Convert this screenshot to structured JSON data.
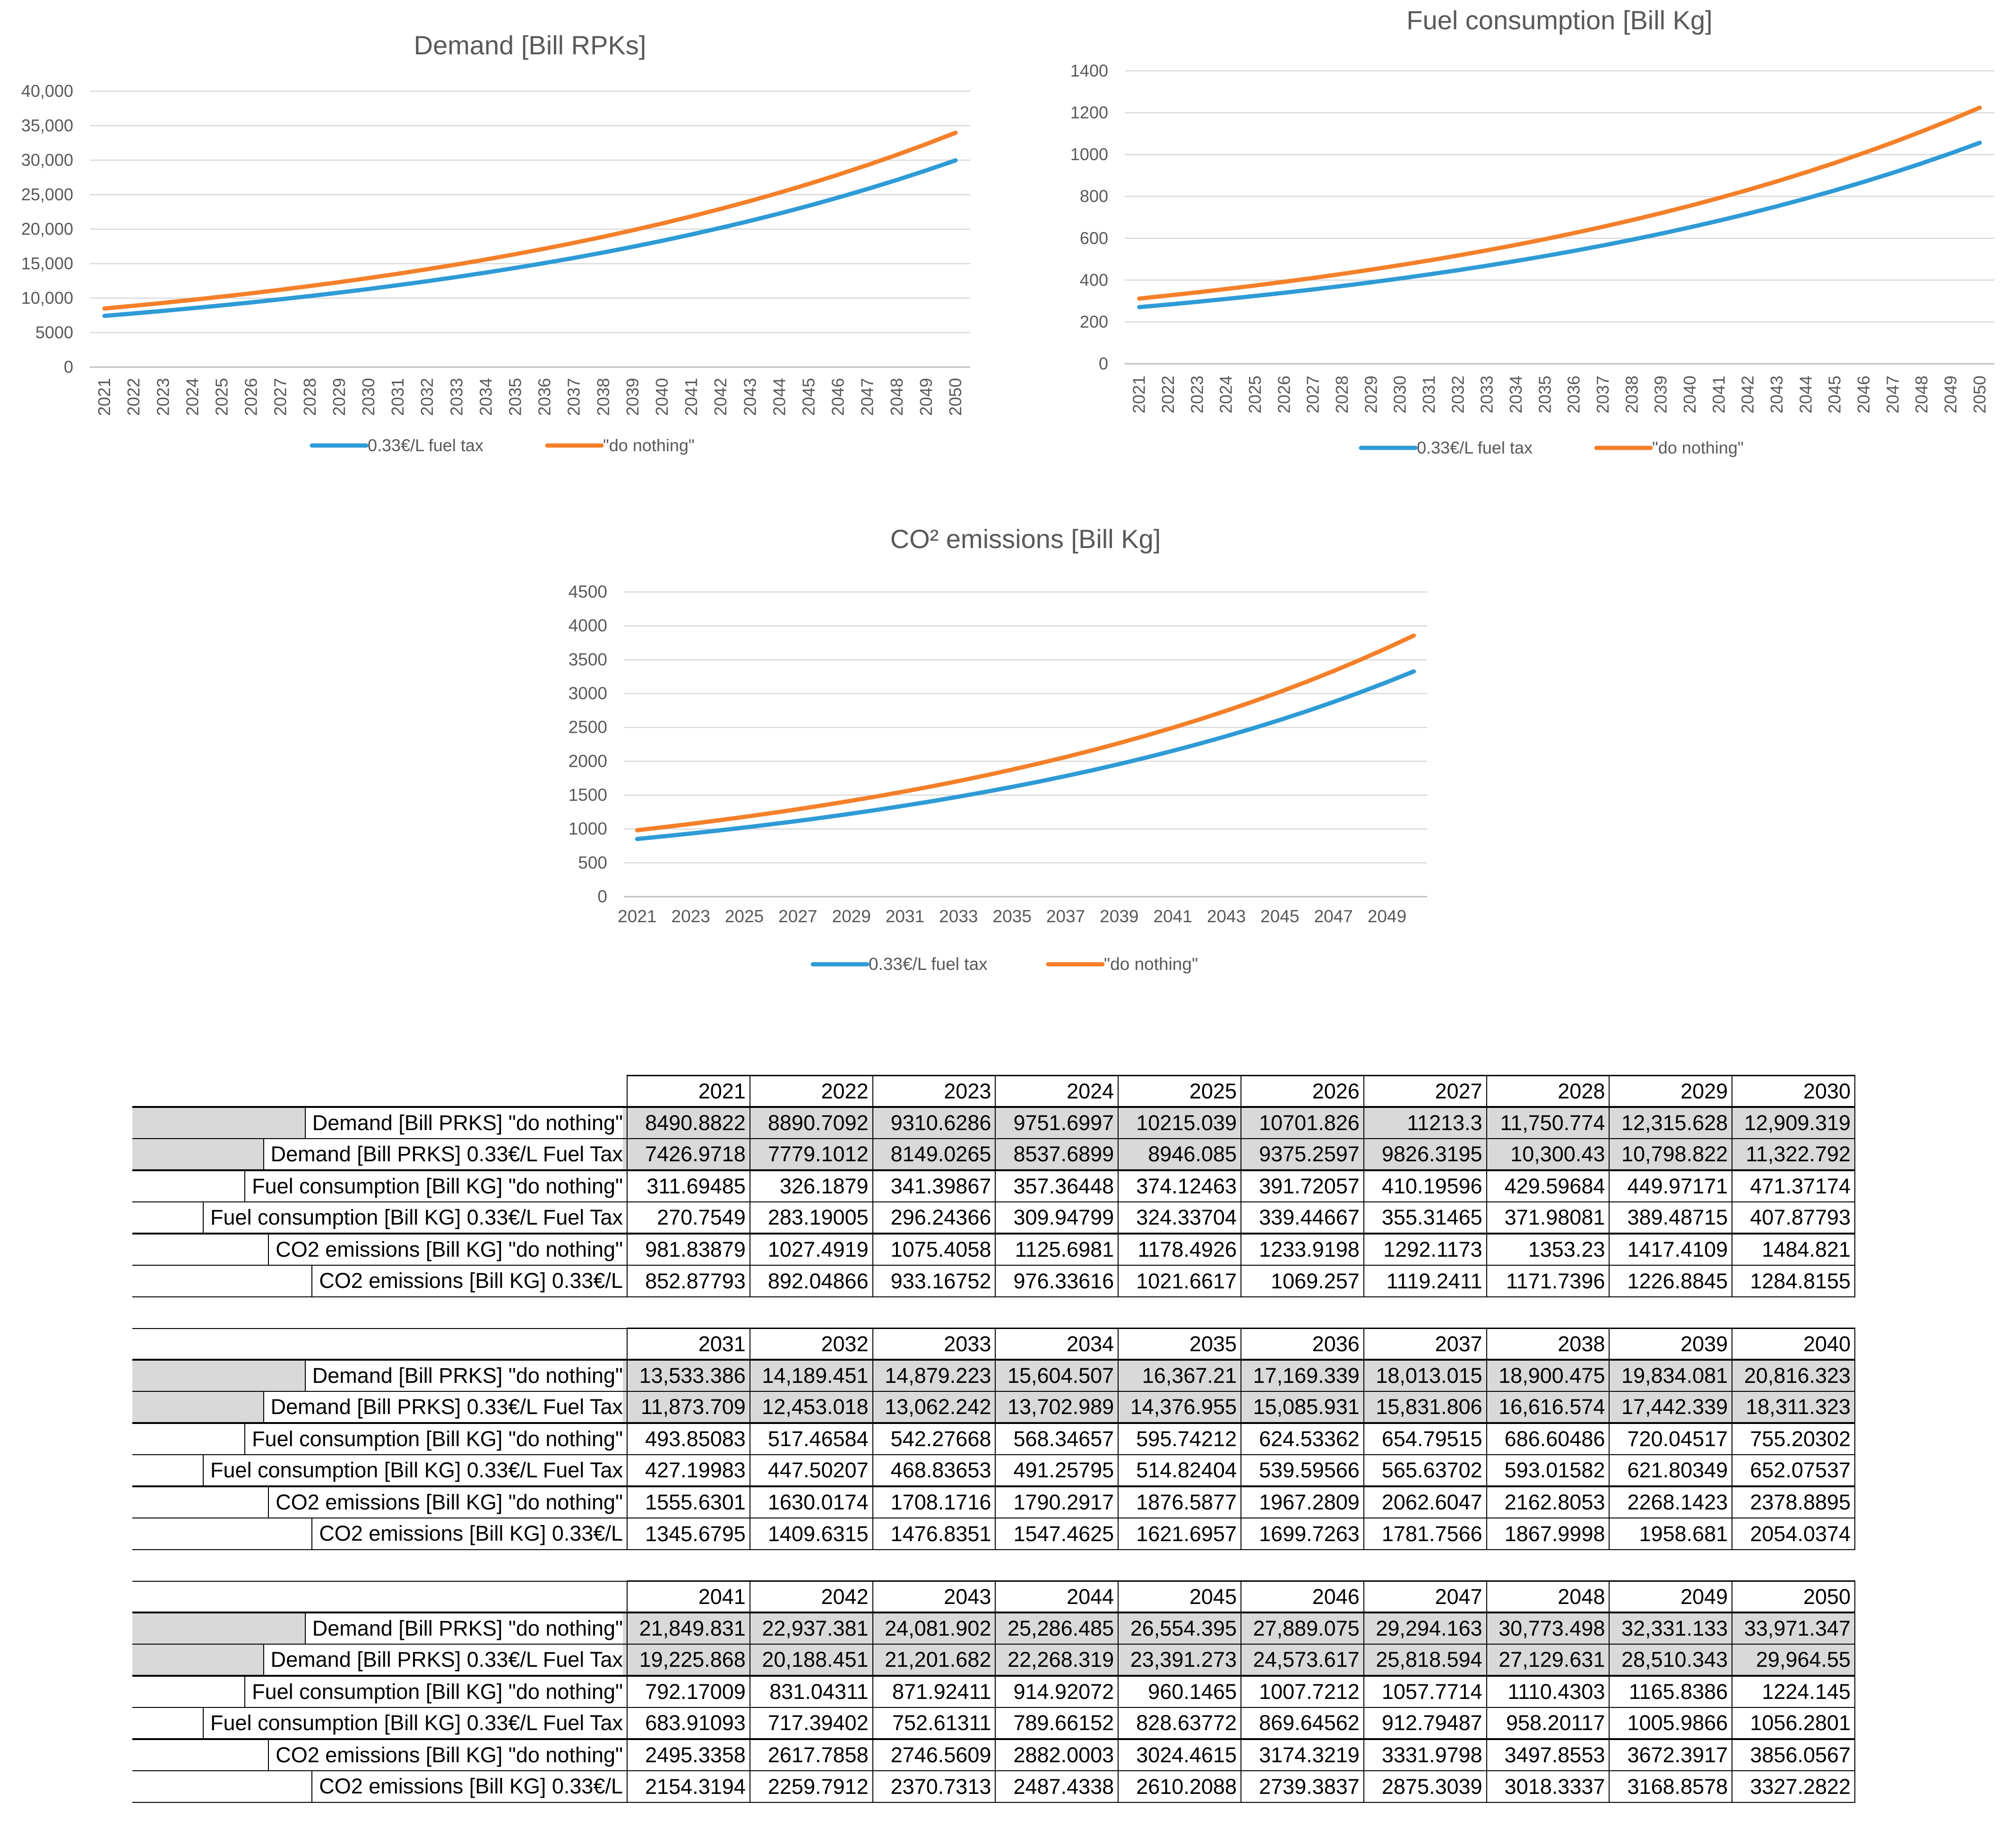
{
  "colors": {
    "tax": "#2E9BD6",
    "nothing": "#F4802A",
    "grid": "#d9d9d9",
    "axis": "#bfbfbf",
    "text": "#595959"
  },
  "legend": {
    "tax": "0.33€/L fuel tax",
    "nothing": "\"do nothing\""
  },
  "chart_data": [
    {
      "id": "demand",
      "type": "line",
      "title": "Demand [Bill RPKs]",
      "x": [
        2021,
        2022,
        2023,
        2024,
        2025,
        2026,
        2027,
        2028,
        2029,
        2030,
        2031,
        2032,
        2033,
        2034,
        2035,
        2036,
        2037,
        2038,
        2039,
        2040,
        2041,
        2042,
        2043,
        2044,
        2045,
        2046,
        2047,
        2048,
        2049,
        2050
      ],
      "ylim": [
        0,
        40000
      ],
      "yticks": [
        "0",
        "5000",
        "10,000",
        "15,000",
        "20,000",
        "25,000",
        "30,000",
        "35,000",
        "40,000"
      ],
      "yticks_values": [
        0,
        5000,
        10000,
        15000,
        20000,
        25000,
        30000,
        35000,
        40000
      ],
      "xtick_step": 1,
      "xtick_rotated": true,
      "series": [
        {
          "name": "0.33€/L fuel tax",
          "values": [
            7426.9718,
            7779.1012,
            8149.0265,
            8537.6899,
            8946.085,
            9375.2597,
            9826.3195,
            10300.43,
            10798.822,
            11322.792,
            11873.709,
            12453.018,
            13062.242,
            13702.989,
            14376.955,
            15085.931,
            15831.806,
            16616.574,
            17442.339,
            18311.323,
            19225.868,
            20188.451,
            21201.682,
            22268.319,
            23391.273,
            24573.617,
            25818.594,
            27129.631,
            28510.343,
            29964.55
          ]
        },
        {
          "name": "\"do nothing\"",
          "values": [
            8490.8822,
            8890.7092,
            9310.6286,
            9751.6997,
            10215.039,
            10701.826,
            11213.3,
            11750.774,
            12315.628,
            12909.319,
            13533.386,
            14189.451,
            14879.223,
            15604.507,
            16367.21,
            17169.339,
            18013.015,
            18900.475,
            19834.081,
            20816.323,
            21849.831,
            22937.381,
            24081.902,
            25286.485,
            26554.395,
            27889.075,
            29294.163,
            30773.498,
            32331.133,
            33971.347
          ]
        }
      ]
    },
    {
      "id": "fuel",
      "type": "line",
      "title": "Fuel consumption [Bill Kg]",
      "x": [
        2021,
        2022,
        2023,
        2024,
        2025,
        2026,
        2027,
        2028,
        2029,
        2030,
        2031,
        2032,
        2033,
        2034,
        2035,
        2036,
        2037,
        2038,
        2039,
        2040,
        2041,
        2042,
        2043,
        2044,
        2045,
        2046,
        2047,
        2048,
        2049,
        2050
      ],
      "ylim": [
        0,
        1400
      ],
      "yticks": [
        "0",
        "200",
        "400",
        "600",
        "800",
        "1000",
        "1200",
        "1400"
      ],
      "yticks_values": [
        0,
        200,
        400,
        600,
        800,
        1000,
        1200,
        1400
      ],
      "xtick_step": 1,
      "xtick_rotated": true,
      "series": [
        {
          "name": "0.33€/L fuel tax",
          "values": [
            270.7549,
            283.19005,
            296.24366,
            309.94799,
            324.33704,
            339.44667,
            355.31465,
            371.98081,
            389.48715,
            407.87793,
            427.19983,
            447.50207,
            468.83653,
            491.25795,
            514.82404,
            539.59566,
            565.63702,
            593.01582,
            621.80349,
            652.07537,
            683.91093,
            717.39402,
            752.61311,
            789.66152,
            828.63772,
            869.64562,
            912.79487,
            958.20117,
            1005.9866,
            1056.2801
          ]
        },
        {
          "name": "\"do nothing\"",
          "values": [
            311.69485,
            326.1879,
            341.39867,
            357.36448,
            374.12463,
            391.72057,
            410.19596,
            429.59684,
            449.97171,
            471.37174,
            493.85083,
            517.46584,
            542.27668,
            568.34657,
            595.74212,
            624.53362,
            654.79515,
            686.60486,
            720.04517,
            755.20302,
            792.17009,
            831.04311,
            871.92411,
            914.92072,
            960.1465,
            1007.7212,
            1057.7714,
            1110.4303,
            1165.8386,
            1224.145
          ]
        }
      ]
    },
    {
      "id": "co2",
      "type": "line",
      "title": "CO² emissions [Bill Kg]",
      "x": [
        2021,
        2022,
        2023,
        2024,
        2025,
        2026,
        2027,
        2028,
        2029,
        2030,
        2031,
        2032,
        2033,
        2034,
        2035,
        2036,
        2037,
        2038,
        2039,
        2040,
        2041,
        2042,
        2043,
        2044,
        2045,
        2046,
        2047,
        2048,
        2049,
        2050
      ],
      "ylim": [
        0,
        4500
      ],
      "yticks": [
        "0",
        "500",
        "1000",
        "1500",
        "2000",
        "2500",
        "3000",
        "3500",
        "4000",
        "4500"
      ],
      "yticks_values": [
        0,
        500,
        1000,
        1500,
        2000,
        2500,
        3000,
        3500,
        4000,
        4500
      ],
      "xtick_step": 2,
      "xtick_rotated": false,
      "series": [
        {
          "name": "0.33€/L fuel tax",
          "values": [
            852.87793,
            892.04866,
            933.16752,
            976.33616,
            1021.6617,
            1069.257,
            1119.2411,
            1171.7396,
            1226.8845,
            1284.8155,
            1345.6795,
            1409.6315,
            1476.8351,
            1547.4625,
            1621.6957,
            1699.7263,
            1781.7566,
            1867.9998,
            1958.681,
            2054.0374,
            2154.3194,
            2259.7912,
            2370.7313,
            2487.4338,
            2610.2088,
            2739.3837,
            2875.3039,
            3018.3337,
            3168.8578,
            3327.2822
          ]
        },
        {
          "name": "\"do nothing\"",
          "values": [
            981.83879,
            1027.4919,
            1075.4058,
            1125.6981,
            1178.4926,
            1233.9198,
            1292.1173,
            1353.23,
            1417.4109,
            1484.821,
            1555.6301,
            1630.0174,
            1708.1716,
            1790.2917,
            1876.5877,
            1967.2809,
            2062.6047,
            2162.8053,
            2268.1423,
            2378.8895,
            2495.3358,
            2617.7858,
            2746.5609,
            2882.0003,
            3024.4615,
            3174.3219,
            3331.9798,
            3497.8553,
            3672.3917,
            3856.0567
          ]
        }
      ]
    }
  ],
  "table": {
    "blocks": [
      {
        "years": [
          "2021",
          "2022",
          "2023",
          "2024",
          "2025",
          "2026",
          "2027",
          "2028",
          "2029",
          "2030"
        ],
        "rows": [
          {
            "label": "Demand [Bill PRKS] \"do nothing\"",
            "values": [
              "8490.8822",
              "8890.7092",
              "9310.6286",
              "9751.6997",
              "10215.039",
              "10701.826",
              "11213.3",
              "11,750.774",
              "12,315.628",
              "12,909.319"
            ]
          },
          {
            "label": "Demand [Bill PRKS] 0.33€/L Fuel Tax",
            "values": [
              "7426.9718",
              "7779.1012",
              "8149.0265",
              "8537.6899",
              "8946.085",
              "9375.2597",
              "9826.3195",
              "10,300.43",
              "10,798.822",
              "11,322.792"
            ]
          },
          {
            "label": "Fuel consumption [Bill KG] \"do nothing\"",
            "values": [
              "311.69485",
              "326.1879",
              "341.39867",
              "357.36448",
              "374.12463",
              "391.72057",
              "410.19596",
              "429.59684",
              "449.97171",
              "471.37174"
            ]
          },
          {
            "label": "Fuel consumption [Bill KG] 0.33€/L Fuel Tax",
            "values": [
              "270.7549",
              "283.19005",
              "296.24366",
              "309.94799",
              "324.33704",
              "339.44667",
              "355.31465",
              "371.98081",
              "389.48715",
              "407.87793"
            ]
          },
          {
            "label": "CO2 emissions [Bill KG] \"do nothing\"",
            "values": [
              "981.83879",
              "1027.4919",
              "1075.4058",
              "1125.6981",
              "1178.4926",
              "1233.9198",
              "1292.1173",
              "1353.23",
              "1417.4109",
              "1484.821"
            ]
          },
          {
            "label": "CO2 emissions [Bill KG] 0.33€/L",
            "values": [
              "852.87793",
              "892.04866",
              "933.16752",
              "976.33616",
              "1021.6617",
              "1069.257",
              "1119.2411",
              "1171.7396",
              "1226.8845",
              "1284.8155"
            ]
          }
        ]
      },
      {
        "years": [
          "2031",
          "2032",
          "2033",
          "2034",
          "2035",
          "2036",
          "2037",
          "2038",
          "2039",
          "2040"
        ],
        "rows": [
          {
            "label": "Demand [Bill PRKS] \"do nothing\"",
            "values": [
              "13,533.386",
              "14,189.451",
              "14,879.223",
              "15,604.507",
              "16,367.21",
              "17,169.339",
              "18,013.015",
              "18,900.475",
              "19,834.081",
              "20,816.323"
            ]
          },
          {
            "label": "Demand [Bill PRKS] 0.33€/L Fuel Tax",
            "values": [
              "11,873.709",
              "12,453.018",
              "13,062.242",
              "13,702.989",
              "14,376.955",
              "15,085.931",
              "15,831.806",
              "16,616.574",
              "17,442.339",
              "18,311.323"
            ]
          },
          {
            "label": "Fuel consumption [Bill KG] \"do nothing\"",
            "values": [
              "493.85083",
              "517.46584",
              "542.27668",
              "568.34657",
              "595.74212",
              "624.53362",
              "654.79515",
              "686.60486",
              "720.04517",
              "755.20302"
            ]
          },
          {
            "label": "Fuel consumption [Bill KG] 0.33€/L Fuel Tax",
            "values": [
              "427.19983",
              "447.50207",
              "468.83653",
              "491.25795",
              "514.82404",
              "539.59566",
              "565.63702",
              "593.01582",
              "621.80349",
              "652.07537"
            ]
          },
          {
            "label": "CO2 emissions [Bill KG] \"do nothing\"",
            "values": [
              "1555.6301",
              "1630.0174",
              "1708.1716",
              "1790.2917",
              "1876.5877",
              "1967.2809",
              "2062.6047",
              "2162.8053",
              "2268.1423",
              "2378.8895"
            ]
          },
          {
            "label": "CO2 emissions [Bill KG] 0.33€/L",
            "values": [
              "1345.6795",
              "1409.6315",
              "1476.8351",
              "1547.4625",
              "1621.6957",
              "1699.7263",
              "1781.7566",
              "1867.9998",
              "1958.681",
              "2054.0374"
            ]
          }
        ]
      },
      {
        "years": [
          "2041",
          "2042",
          "2043",
          "2044",
          "2045",
          "2046",
          "2047",
          "2048",
          "2049",
          "2050"
        ],
        "rows": [
          {
            "label": "Demand [Bill PRKS] \"do nothing\"",
            "values": [
              "21,849.831",
              "22,937.381",
              "24,081.902",
              "25,286.485",
              "26,554.395",
              "27,889.075",
              "29,294.163",
              "30,773.498",
              "32,331.133",
              "33,971.347"
            ]
          },
          {
            "label": "Demand [Bill PRKS] 0.33€/L Fuel Tax",
            "values": [
              "19,225.868",
              "20,188.451",
              "21,201.682",
              "22,268.319",
              "23,391.273",
              "24,573.617",
              "25,818.594",
              "27,129.631",
              "28,510.343",
              "29,964.55"
            ]
          },
          {
            "label": "Fuel consumption [Bill KG] \"do nothing\"",
            "values": [
              "792.17009",
              "831.04311",
              "871.92411",
              "914.92072",
              "960.1465",
              "1007.7212",
              "1057.7714",
              "1110.4303",
              "1165.8386",
              "1224.145"
            ]
          },
          {
            "label": "Fuel consumption [Bill KG] 0.33€/L Fuel Tax",
            "values": [
              "683.91093",
              "717.39402",
              "752.61311",
              "789.66152",
              "828.63772",
              "869.64562",
              "912.79487",
              "958.20117",
              "1005.9866",
              "1056.2801"
            ]
          },
          {
            "label": "CO2 emissions [Bill KG] \"do nothing\"",
            "values": [
              "2495.3358",
              "2617.7858",
              "2746.5609",
              "2882.0003",
              "3024.4615",
              "3174.3219",
              "3331.9798",
              "3497.8553",
              "3672.3917",
              "3856.0567"
            ]
          },
          {
            "label": "CO2 emissions [Bill KG] 0.33€/L",
            "values": [
              "2154.3194",
              "2259.7912",
              "2370.7313",
              "2487.4338",
              "2610.2088",
              "2739.3837",
              "2875.3039",
              "3018.3337",
              "3168.8578",
              "3327.2822"
            ]
          }
        ]
      }
    ]
  }
}
